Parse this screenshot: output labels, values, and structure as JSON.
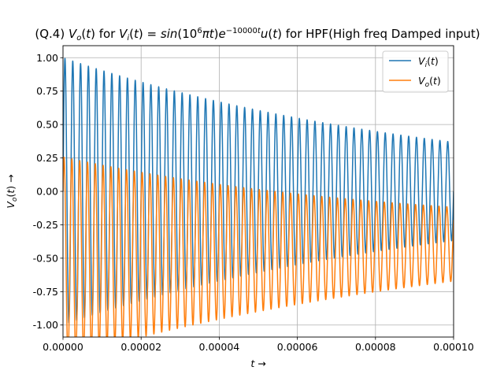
{
  "chart_data": {
    "type": "line",
    "title": "(Q.4) V_o(t) for V_i(t) = sin(10^6 πt)e^(-10000t) u(t) for HPF(High freq Damped input)",
    "xlabel": "t →",
    "ylabel": "V_o(t) →",
    "xlim": [
      0,
      0.0001
    ],
    "ylim": [
      -1.09,
      1.09
    ],
    "grid": true,
    "legend_position": "top-right",
    "x_ticks": [
      "0.00000",
      "0.00002",
      "0.00004",
      "0.00006",
      "0.00008",
      "0.00010"
    ],
    "x_tick_values": [
      0,
      2e-05,
      4e-05,
      6e-05,
      8e-05,
      0.0001
    ],
    "y_ticks": [
      "-1.00",
      "-0.75",
      "-0.50",
      "-0.25",
      "0.00",
      "0.25",
      "0.50",
      "0.75",
      "1.00"
    ],
    "y_tick_values": [
      -1.0,
      -0.75,
      -0.5,
      -0.25,
      0.0,
      0.25,
      0.5,
      0.75,
      1.0
    ],
    "series": [
      {
        "name": "V_i(t)",
        "color": "#1f77b4",
        "formula": "sin(1e6*pi*t)*exp(-10000*t)",
        "x_range": [
          0,
          0.0001
        ],
        "samples": 3000
      },
      {
        "name": "V_o(t)",
        "color": "#ff7f0e",
        "formula": "0.7534*exp(-10000*t)*sin(1e6*pi*t+0.718) - 0.496*exp(-2283.3*t)",
        "x_range": [
          0,
          0.0001
        ],
        "samples": 3000
      }
    ]
  }
}
